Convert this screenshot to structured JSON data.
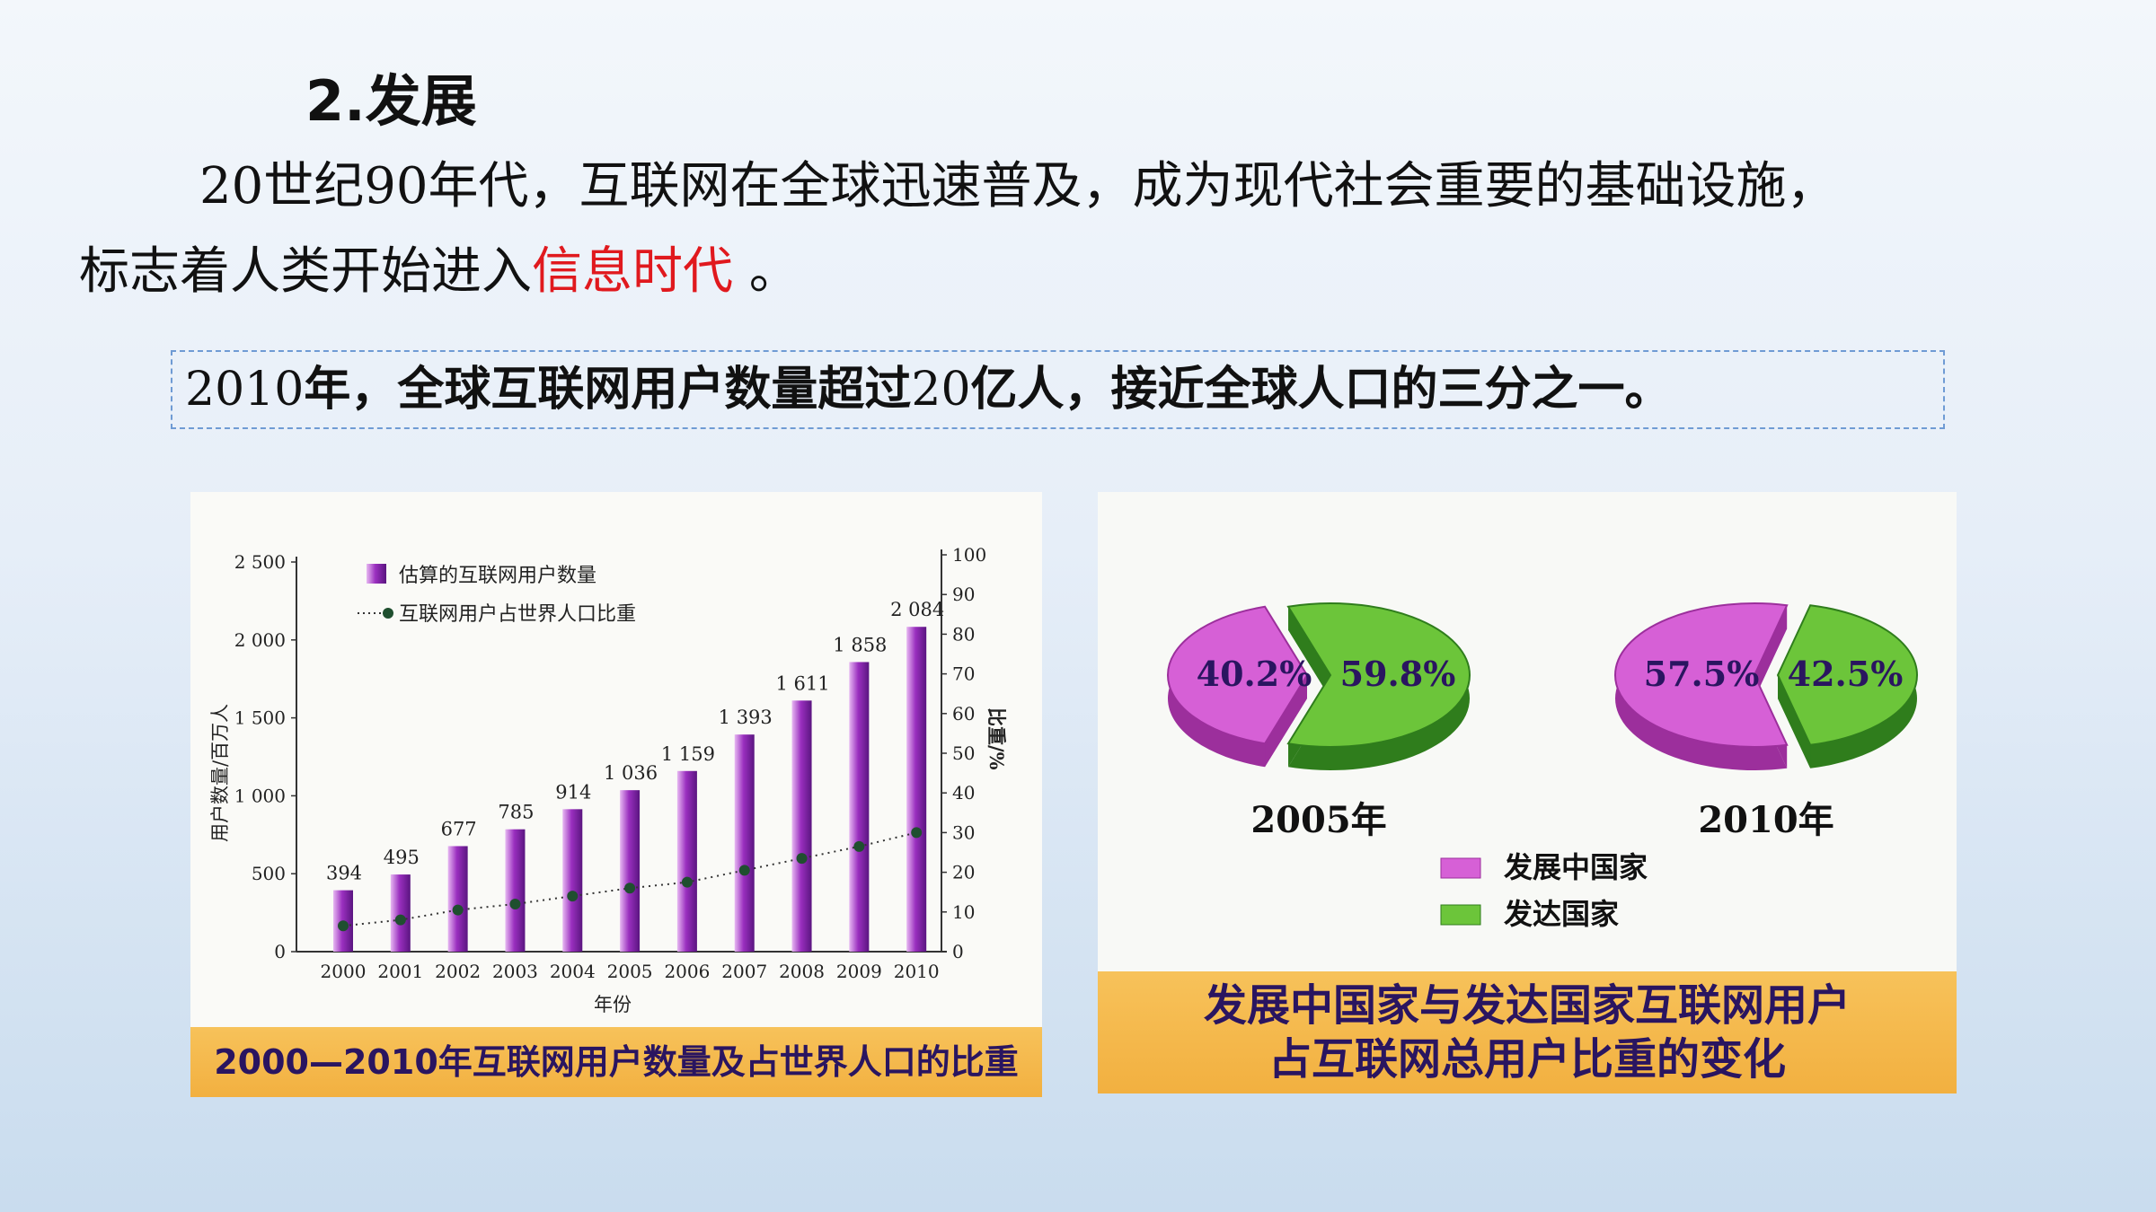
{
  "heading": "2.发展",
  "intro": {
    "line1": "20世纪90年代，互联网在全球迅速普及，成为现代社会重要的基础设施，",
    "line2_prefix": "标志着人类开始进入",
    "line2_highlight": "信息时代",
    "line2_suffix": " 。"
  },
  "callout": {
    "p1": "2010",
    "p2": "年，全球互联网用户数量超过",
    "p3": "20",
    "p4": "亿人，接近全球人口的三分之一。"
  },
  "chart_data": [
    {
      "type": "bar",
      "caption": "2000—2010年互联网用户数量及占世界人口的比重",
      "categories": [
        "2000",
        "2001",
        "2002",
        "2003",
        "2004",
        "2005",
        "2006",
        "2007",
        "2008",
        "2009",
        "2010"
      ],
      "series": [
        {
          "name": "估算的互联网用户数量",
          "values": [
            394,
            495,
            677,
            785,
            914,
            1036,
            1159,
            1393,
            1611,
            1858,
            2084
          ],
          "color": "#9a2fbf"
        },
        {
          "name": "互联网用户占世界人口比重",
          "values": [
            6.5,
            8,
            10.5,
            12,
            14,
            16,
            17.5,
            20.5,
            23.5,
            26.5,
            30
          ],
          "color": "#1f4f2f",
          "style": "dotted-line"
        }
      ],
      "data_labels": [
        "394",
        "495",
        "677",
        "785",
        "914",
        "1 036",
        "1 159",
        "1 393",
        "1 611",
        "1 858",
        "2 084"
      ],
      "xlabel": "年份",
      "ylabel": "用户数量/百万人",
      "y2label": "比重/%",
      "ylim": [
        0,
        2500
      ],
      "y2lim": [
        0,
        100
      ],
      "yticks": [
        "0",
        "500",
        "1 000",
        "1 500",
        "2 000",
        "2 500"
      ],
      "y2ticks": [
        "0",
        "10",
        "20",
        "30",
        "40",
        "50",
        "60",
        "70",
        "80",
        "90",
        "100"
      ]
    },
    {
      "type": "pie",
      "caption_line1": "发展中国家与发达国家互联网用户",
      "caption_line2": "占互联网总用户比重的变化",
      "legend": [
        {
          "name": "发展中国家",
          "color": "#d660d6"
        },
        {
          "name": "发达国家",
          "color": "#6cc53a"
        }
      ],
      "pies": [
        {
          "year_label": "2005年",
          "slices": [
            {
              "label": "40.2%",
              "value": 40.2
            },
            {
              "label": "59.8%",
              "value": 59.8
            }
          ]
        },
        {
          "year_label": "2010年",
          "slices": [
            {
              "label": "57.5%",
              "value": 57.5
            },
            {
              "label": "42.5%",
              "value": 42.5
            }
          ]
        }
      ]
    }
  ]
}
